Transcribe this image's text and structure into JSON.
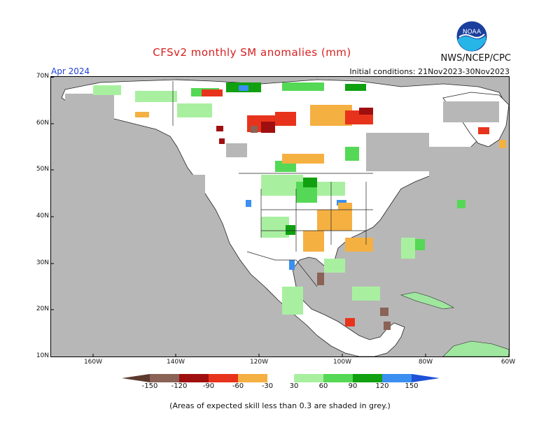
{
  "header": {
    "title": "CFSv2 monthly SM anomalies (mm)",
    "org": "NWS/NCEP/CPC",
    "month": "Apr 2024",
    "initial_conditions": "Initial conditions: 21Nov2023-30Nov2023"
  },
  "logo": {
    "text": "NOAA",
    "icon": "noaa-logo-icon"
  },
  "axes": {
    "lat_labels": [
      "70N",
      "60N",
      "50N",
      "40N",
      "30N",
      "20N",
      "10N"
    ],
    "lon_labels": [
      "160W",
      "140W",
      "120W",
      "100W",
      "80W",
      "60W"
    ]
  },
  "legend": {
    "labels": [
      "-150",
      "-120",
      "-90",
      "-60",
      "-30",
      "30",
      "60",
      "90",
      "120",
      "150"
    ],
    "colors": {
      "below_-150": "#5c3a2e",
      "-150_-120": "#8a6256",
      "-120_-90": "#a00f0f",
      "-90_-60": "#e8331c",
      "-60_-30": "#f5b042",
      "-30_30": "#ffffff",
      "30_60": "#a8f0a0",
      "60_90": "#55d855",
      "90_120": "#10a010",
      "120_150": "#3a8ff0",
      "above_150": "#1e50d8"
    }
  },
  "map": {
    "low_skill_color": "#b7b7b7",
    "land_color": "#ffffff",
    "ocean_color": "#b7b7b7"
  },
  "footnote": "(Areas of expected skill less than 0.3 are shaded in grey.)"
}
